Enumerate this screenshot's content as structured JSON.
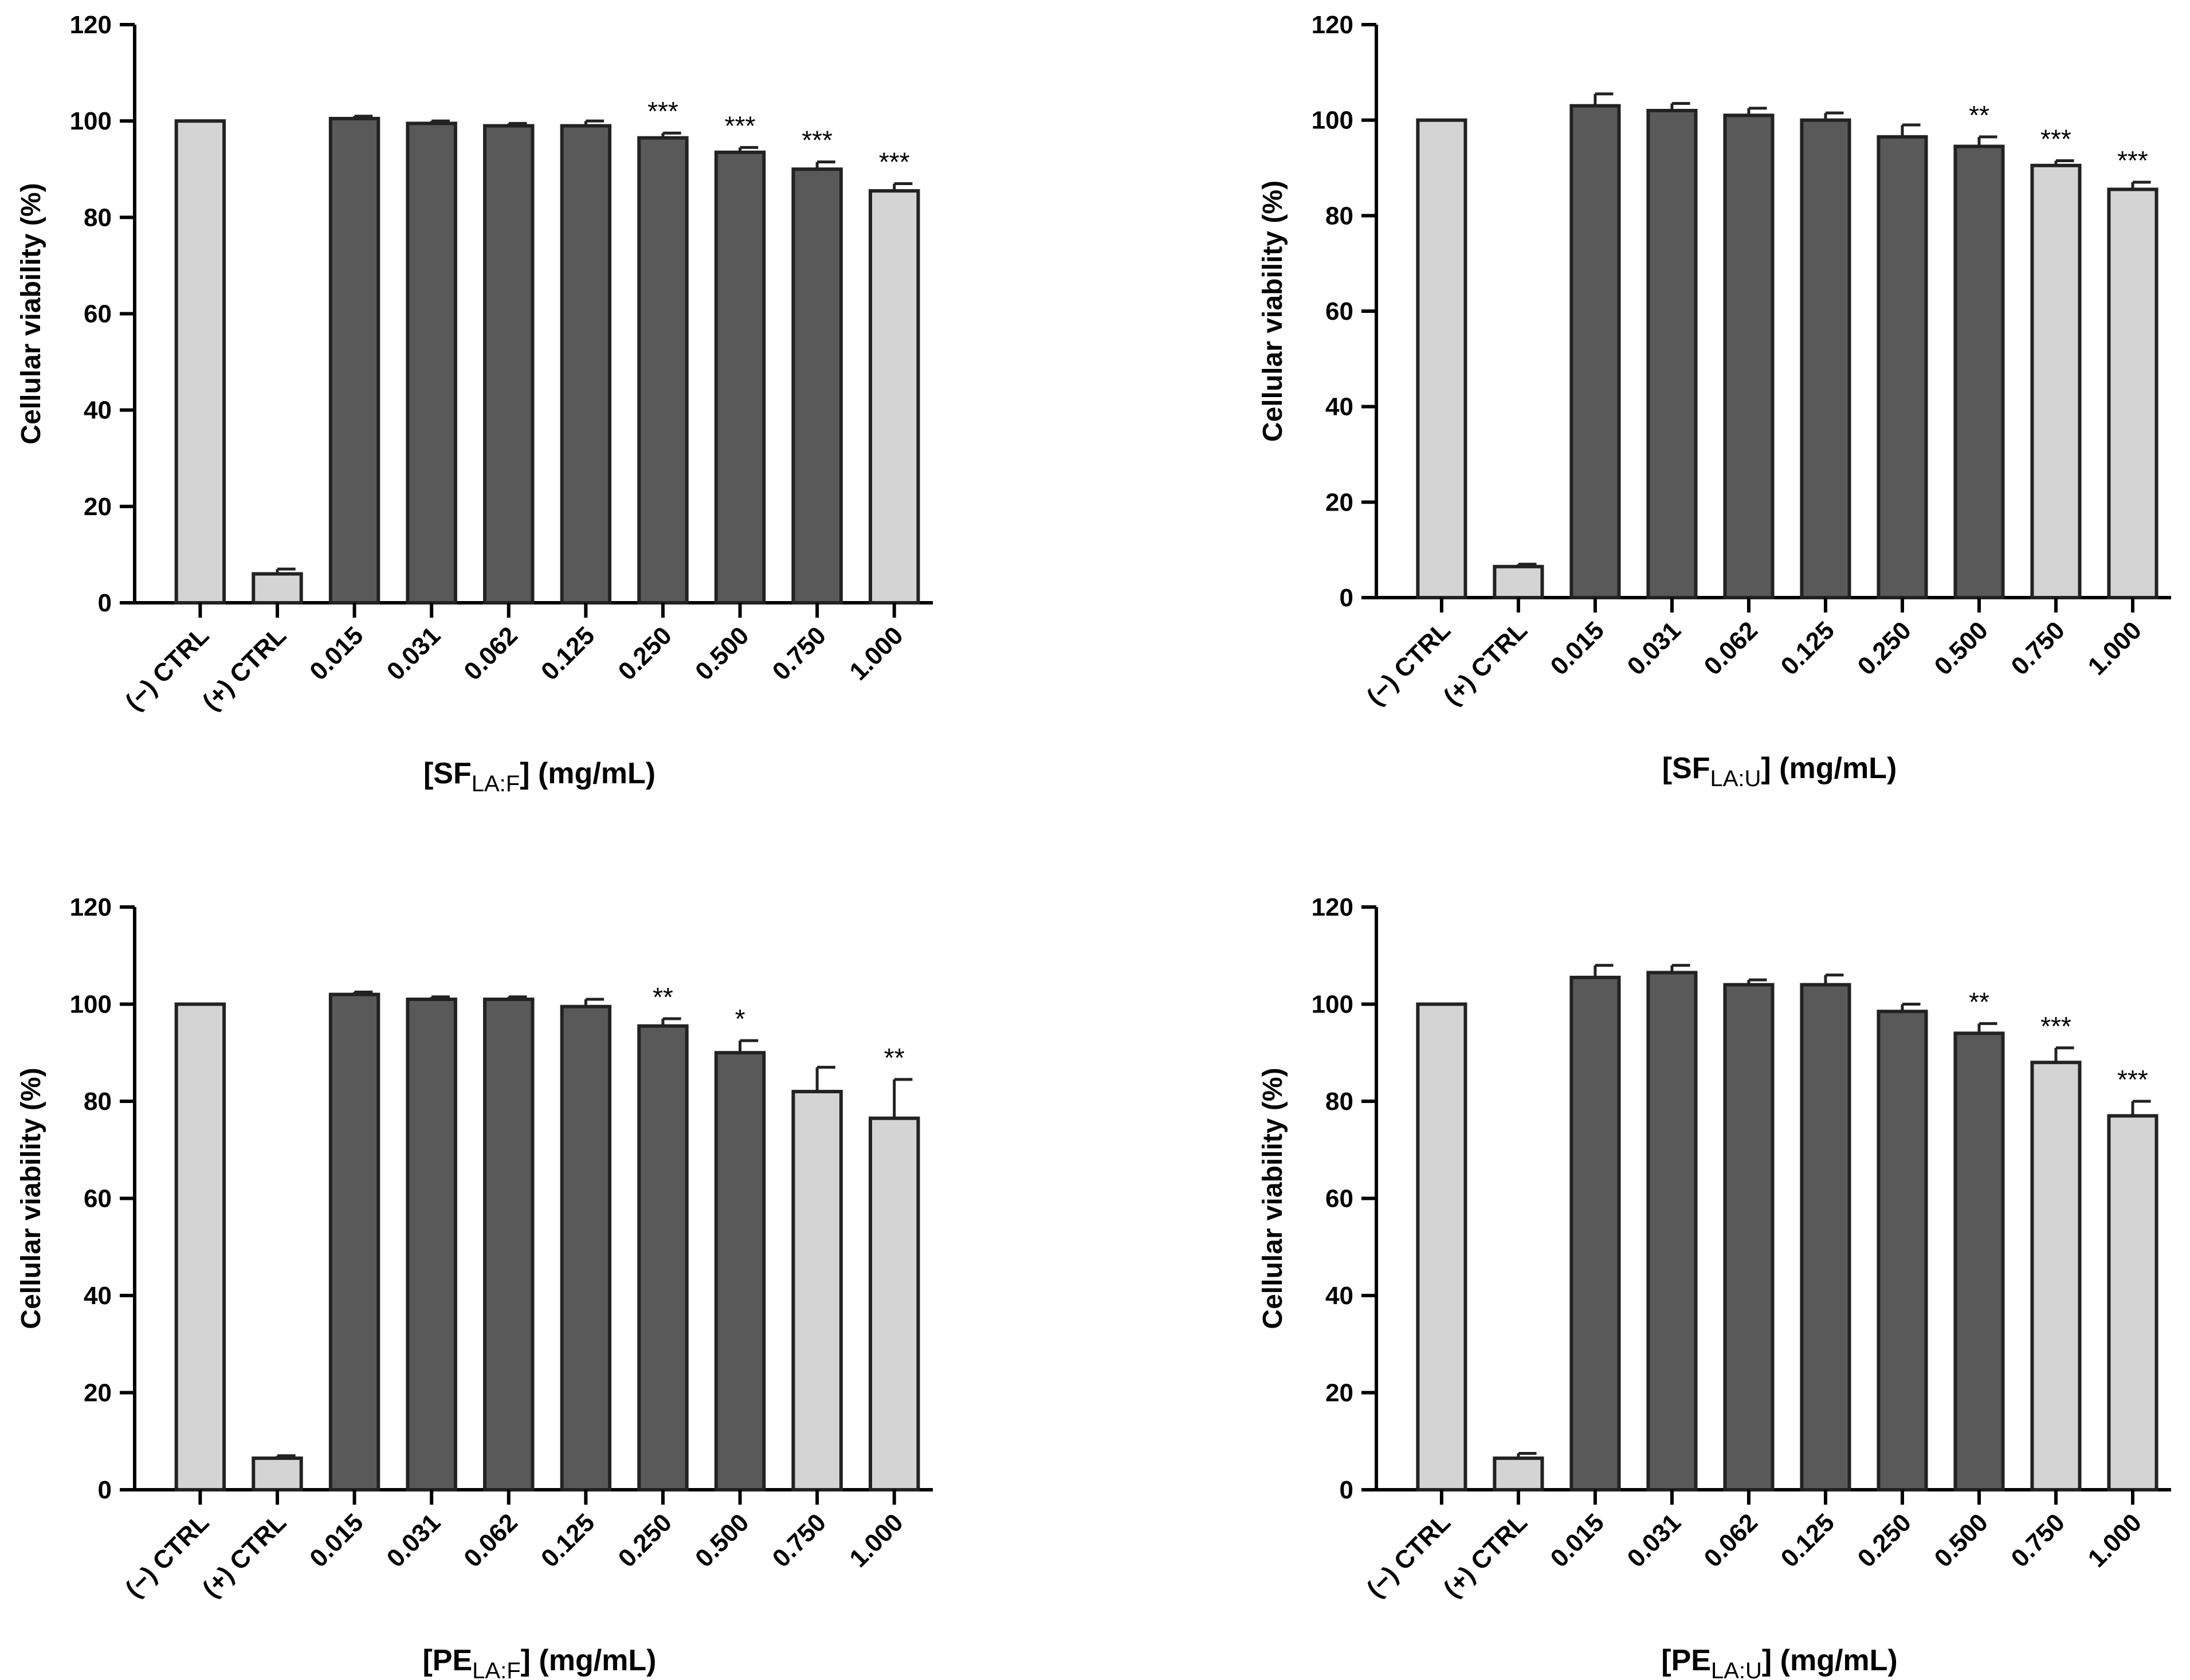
{
  "colors": {
    "control_bar": "#d4d4d4",
    "treated_bar": "#595959",
    "outline": "#222222"
  },
  "chart_data": [
    {
      "type": "bar",
      "ylabel": "Cellular viability (%)",
      "xlabel": {
        "main": "[SF",
        "sub": "LA:F",
        "rest": "] (mg/mL)"
      },
      "ylim": [
        0,
        120
      ],
      "yticks": [
        "0",
        "20",
        "40",
        "60",
        "80",
        "100",
        "120"
      ],
      "categories": [
        "(−) CTRL",
        "(+) CTRL",
        "0.015",
        "0.031",
        "0.062",
        "0.125",
        "0.250",
        "0.500",
        "0.750",
        "1.000"
      ],
      "values": [
        100,
        6,
        100.5,
        99.5,
        99,
        99,
        96.5,
        93.5,
        90,
        85.5
      ],
      "errors": [
        0,
        1,
        0.5,
        0.5,
        0.5,
        1,
        1,
        1,
        1.5,
        1.5
      ],
      "significance": [
        "",
        "",
        "",
        "",
        "",
        "",
        "***",
        "***",
        "***",
        "***"
      ],
      "fill": [
        "light",
        "light",
        "dark",
        "dark",
        "dark",
        "dark",
        "dark",
        "dark",
        "dark",
        "light"
      ]
    },
    {
      "type": "bar",
      "ylabel": "Cellular viability (%)",
      "xlabel": {
        "main": "[SF",
        "sub": "LA:U",
        "rest": "] (mg/mL)"
      },
      "ylim": [
        0,
        120
      ],
      "yticks": [
        "0",
        "20",
        "40",
        "60",
        "80",
        "100",
        "120"
      ],
      "categories": [
        "(−) CTRL",
        "(+) CTRL",
        "0.015",
        "0.031",
        "0.062",
        "0.125",
        "0.250",
        "0.500",
        "0.750",
        "1.000"
      ],
      "values": [
        100,
        6.5,
        103,
        102,
        101,
        100,
        96.5,
        94.5,
        90.5,
        85.5
      ],
      "errors": [
        0,
        0.5,
        2.5,
        1.5,
        1.5,
        1.5,
        2.5,
        2,
        1,
        1.5
      ],
      "significance": [
        "",
        "",
        "",
        "",
        "",
        "",
        "",
        "**",
        "***",
        "***"
      ],
      "fill": [
        "light",
        "light",
        "dark",
        "dark",
        "dark",
        "dark",
        "dark",
        "dark",
        "light",
        "light"
      ]
    },
    {
      "type": "bar",
      "ylabel": "Cellular viability (%)",
      "xlabel": {
        "main": "[PE",
        "sub": "LA:F",
        "rest": "] (mg/mL)"
      },
      "ylim": [
        0,
        120
      ],
      "yticks": [
        "0",
        "20",
        "40",
        "60",
        "80",
        "100",
        "120"
      ],
      "categories": [
        "(−) CTRL",
        "(+) CTRL",
        "0.015",
        "0.031",
        "0.062",
        "0.125",
        "0.250",
        "0.500",
        "0.750",
        "1.000"
      ],
      "values": [
        100,
        6.5,
        102,
        101,
        101,
        99.5,
        95.5,
        90,
        82,
        76.5
      ],
      "errors": [
        0,
        0.5,
        0.5,
        0.5,
        0.5,
        1.5,
        1.5,
        2.5,
        5,
        8
      ],
      "significance": [
        "",
        "",
        "",
        "",
        "",
        "",
        "**",
        "*",
        "",
        "**"
      ],
      "fill": [
        "light",
        "light",
        "dark",
        "dark",
        "dark",
        "dark",
        "dark",
        "dark",
        "light",
        "light"
      ]
    },
    {
      "type": "bar",
      "ylabel": "Cellular viability (%)",
      "xlabel": {
        "main": "[PE",
        "sub": "LA:U",
        "rest": "] (mg/mL)"
      },
      "ylim": [
        0,
        120
      ],
      "yticks": [
        "0",
        "20",
        "40",
        "60",
        "80",
        "100",
        "120"
      ],
      "categories": [
        "(−) CTRL",
        "(+) CTRL",
        "0.015",
        "0.031",
        "0.062",
        "0.125",
        "0.250",
        "0.500",
        "0.750",
        "1.000"
      ],
      "values": [
        100,
        6.5,
        105.5,
        106.5,
        104,
        104,
        98.5,
        94,
        88,
        77
      ],
      "errors": [
        0,
        1,
        2.5,
        1.5,
        1,
        2,
        1.5,
        2,
        3,
        3
      ],
      "significance": [
        "",
        "",
        "",
        "",
        "",
        "",
        "",
        "**",
        "***",
        "***"
      ],
      "fill": [
        "light",
        "light",
        "dark",
        "dark",
        "dark",
        "dark",
        "dark",
        "dark",
        "light",
        "light"
      ]
    }
  ]
}
